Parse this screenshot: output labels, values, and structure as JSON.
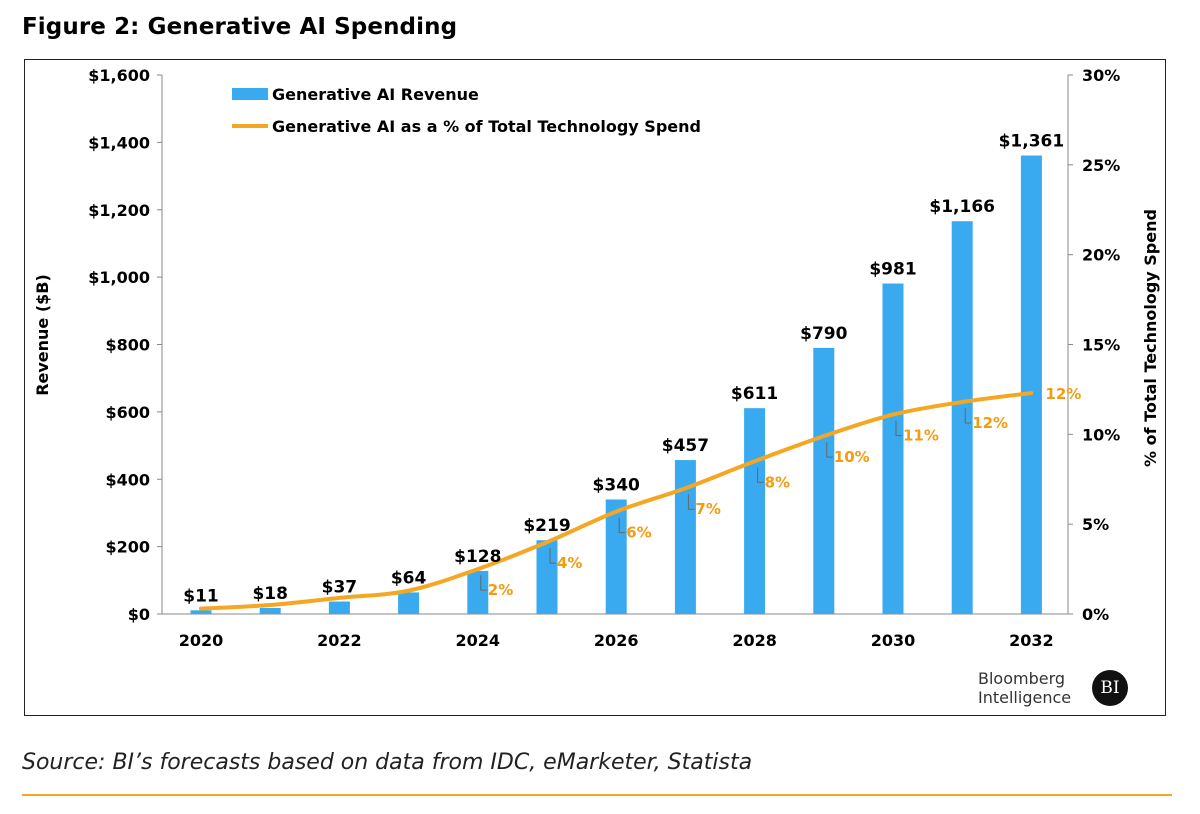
{
  "figure": {
    "title": "Figure 2: Generative AI Spending",
    "source": "Source: BI’s forecasts based on data from IDC, eMarketer, Statista",
    "brand_line1": "Bloomberg",
    "brand_line2": "Intelligence",
    "brand_badge": "BI"
  },
  "colors": {
    "bar": "#3aaaf0",
    "line": "#f5a623",
    "pct_label": "#f39c12",
    "rule": "#f5a623"
  },
  "chart_data": {
    "type": "bar",
    "title": "Figure 2: Generative AI Spending",
    "ylabel": "Revenue ($B)",
    "y2label": "% of Total Technology Spend",
    "ylim": [
      0,
      1600
    ],
    "y2lim": [
      0,
      30
    ],
    "yticks": [
      "$0",
      "$200",
      "$400",
      "$600",
      "$800",
      "$1,000",
      "$1,200",
      "$1,400",
      "$1,600"
    ],
    "y2ticks": [
      "0%",
      "5%",
      "10%",
      "15%",
      "20%",
      "25%",
      "30%"
    ],
    "xticks": [
      "2020",
      "2022",
      "2024",
      "2026",
      "2028",
      "2030",
      "2032"
    ],
    "legend_position": "top-left",
    "grid": false,
    "categories": [
      "2020",
      "2021",
      "2022",
      "2023",
      "2024",
      "2025",
      "2026",
      "2027",
      "2028",
      "2029",
      "2030",
      "2031",
      "2032"
    ],
    "series": [
      {
        "name": "Generative AI Revenue",
        "type": "bar",
        "axis": "left",
        "values": [
          11,
          18,
          37,
          64,
          128,
          219,
          340,
          457,
          611,
          790,
          981,
          1166,
          1361
        ],
        "labels": [
          "$11",
          "$18",
          "$37",
          "$64",
          "$128",
          "$219",
          "$340",
          "$457",
          "$611",
          "$790",
          "$981",
          "$1,166",
          "$1,361"
        ]
      },
      {
        "name": "Generative AI as a % of Total Technology Spend",
        "type": "line",
        "axis": "right",
        "values": [
          0.3,
          0.5,
          0.9,
          1.3,
          2.5,
          4.0,
          5.7,
          7.0,
          8.5,
          9.9,
          11.1,
          11.8,
          12.3
        ],
        "labels": [
          "",
          "",
          "",
          "",
          "2%",
          "4%",
          "6%",
          "7%",
          "8%",
          "10%",
          "11%",
          "12%",
          "12%"
        ]
      }
    ]
  }
}
